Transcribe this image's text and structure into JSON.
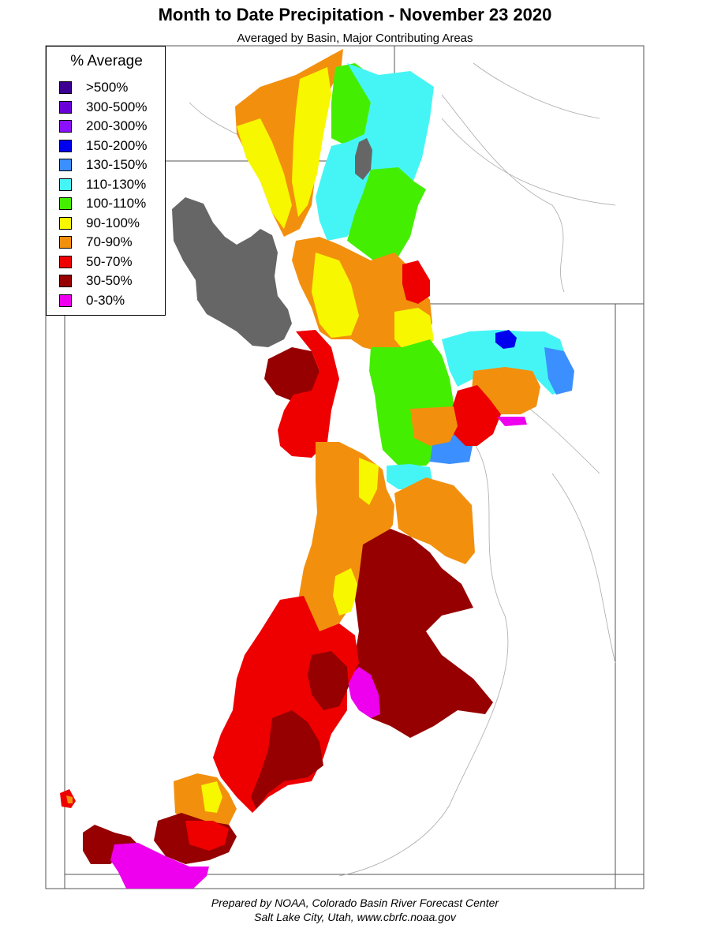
{
  "title": "Month to Date Precipitation - November 23 2020",
  "subtitle": "Averaged by Basin, Major Contributing Areas",
  "legend": {
    "title": "% Average",
    "items": [
      {
        "label": ">500%",
        "color": "#3c0090"
      },
      {
        "label": "300-500%",
        "color": "#6a00d8"
      },
      {
        "label": "200-300%",
        "color": "#8a10ff"
      },
      {
        "label": "150-200%",
        "color": "#0000ee"
      },
      {
        "label": "130-150%",
        "color": "#3b8fff"
      },
      {
        "label": "110-130%",
        "color": "#45f5f5"
      },
      {
        "label": "100-110%",
        "color": "#44ee00"
      },
      {
        "label": "90-100%",
        "color": "#f7f700"
      },
      {
        "label": "70-90%",
        "color": "#f2900e"
      },
      {
        "label": "50-70%",
        "color": "#ee0000"
      },
      {
        "label": "30-50%",
        "color": "#960000"
      },
      {
        "label": "0-30%",
        "color": "#ee00ee"
      }
    ]
  },
  "lake_color": "#666666",
  "credit": {
    "line1": "Prepared by NOAA, Colorado Basin River Forecast Center",
    "line2": "Salt Lake City, Utah, www.cbrfc.noaa.gov"
  }
}
